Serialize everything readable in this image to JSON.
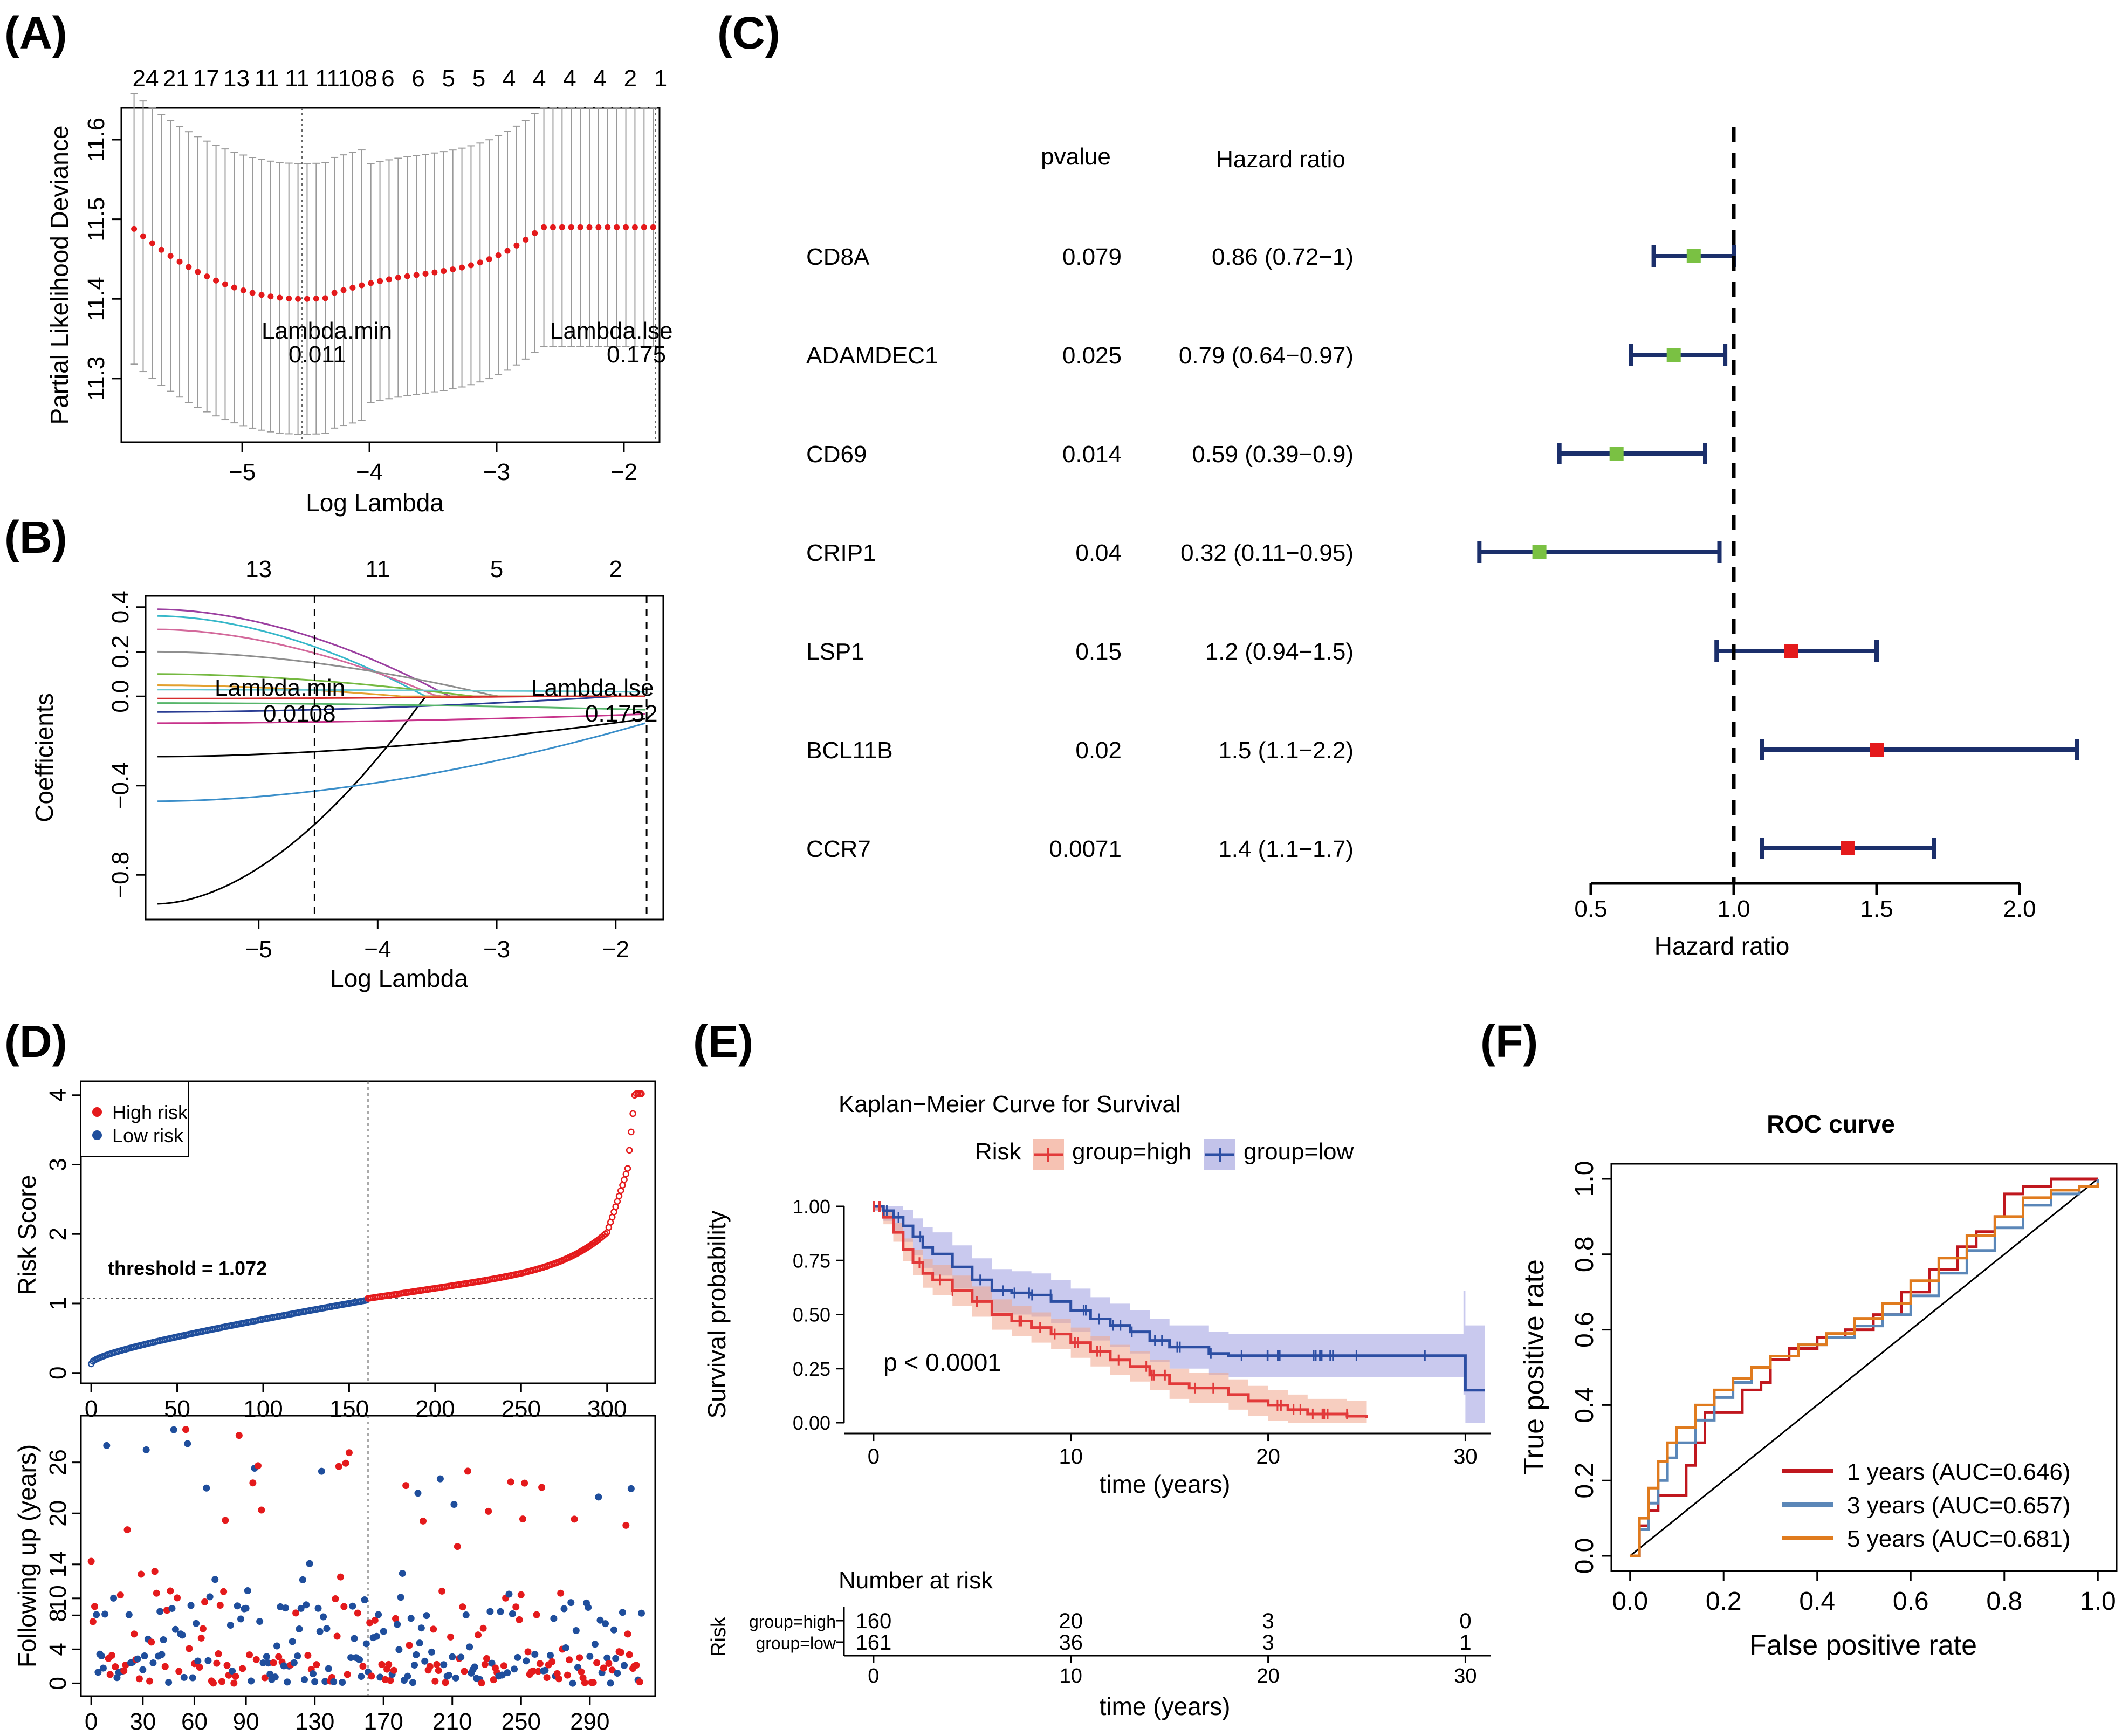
{
  "panel_labels": [
    "(A)",
    "(B)",
    "(C)",
    "(D)",
    "(E)",
    "(F)"
  ],
  "colors": {
    "red": "#e41a1c",
    "blue": "#1f4e9c",
    "green": "#7ac143",
    "navy": "#1b2f6b",
    "grey": "#9a9a9a",
    "km_red": "#e23a3a",
    "km_blue": "#2c4ea3",
    "roc1": "#c0171e",
    "roc3": "#5b87b8",
    "roc5": "#e07b1e"
  },
  "chart_data": [
    {
      "panel": "A",
      "type": "scatter",
      "xlabel": "Log Lambda",
      "ylabel": "Partial Likelihood Deviance",
      "xlim": [
        -5.95,
        -1.72
      ],
      "ylim": [
        11.22,
        11.64
      ],
      "xticks": [
        -5,
        -4,
        -3,
        -2
      ],
      "yticks": [
        11.3,
        11.4,
        11.5,
        11.6
      ],
      "top_labels": [
        "24",
        "21",
        "17",
        "13",
        "11",
        "11",
        "11",
        "108",
        "6",
        "6",
        "5",
        "5",
        "4",
        "4",
        "4",
        "4",
        "2",
        "1"
      ],
      "lambda_min": {
        "label": "Lambda.min",
        "value": "0.011",
        "log": -4.53
      },
      "lambda_1se": {
        "label": "Lambda.lse",
        "value": "0.175",
        "log": -1.75
      }
    },
    {
      "panel": "B",
      "type": "line",
      "xlabel": "Log Lambda",
      "ylabel": "Coefficients",
      "xlim": [
        -5.95,
        -1.6
      ],
      "ylim": [
        -1.0,
        0.45
      ],
      "xticks": [
        -5,
        -4,
        -3,
        -2
      ],
      "yticks": [
        -0.8,
        -0.4,
        0.0,
        0.2,
        0.4
      ],
      "ytick_labels": [
        "-0.8",
        "-0.4",
        "0.0",
        "0.2",
        "0.4"
      ],
      "top_ticks": [
        -5,
        -4,
        -3,
        -2
      ],
      "top_labels": [
        "13",
        "11",
        "5",
        "2"
      ],
      "lambda_min": {
        "label": "Lambda.min",
        "value": "0.0108",
        "log": -4.53
      },
      "lambda_1se": {
        "label": "Lambda.lse",
        "value": "0.1752",
        "log": -1.74
      }
    },
    {
      "panel": "C",
      "type": "forest",
      "col_headers": {
        "pvalue": "pvalue",
        "hr": "Hazard ratio"
      },
      "xlabel": "Hazard ratio",
      "xticks": [
        0.5,
        1.0,
        1.5,
        2.0
      ],
      "xtick_labels": [
        "0.5",
        "1.0",
        "1.5",
        "2.0"
      ],
      "rows": [
        {
          "gene": "CD8A",
          "pvalue": "0.079",
          "hr_text": "0.86 (0.72−1)",
          "hr": 0.86,
          "lo": 0.72,
          "hi": 1.0
        },
        {
          "gene": "ADAMDEC1",
          "pvalue": "0.025",
          "hr_text": "0.79 (0.64−0.97)",
          "hr": 0.79,
          "lo": 0.64,
          "hi": 0.97
        },
        {
          "gene": "CD69",
          "pvalue": "0.014",
          "hr_text": "0.59 (0.39−0.9)",
          "hr": 0.59,
          "lo": 0.39,
          "hi": 0.9
        },
        {
          "gene": "CRIP1",
          "pvalue": "0.04",
          "hr_text": "0.32 (0.11−0.95)",
          "hr": 0.32,
          "lo": 0.11,
          "hi": 0.95
        },
        {
          "gene": "LSP1",
          "pvalue": "0.15",
          "hr_text": "1.2 (0.94−1.5)",
          "hr": 1.2,
          "lo": 0.94,
          "hi": 1.5
        },
        {
          "gene": "BCL11B",
          "pvalue": "0.02",
          "hr_text": "1.5 (1.1−2.2)",
          "hr": 1.5,
          "lo": 1.1,
          "hi": 2.2
        },
        {
          "gene": "CCR7",
          "pvalue": "0.0071",
          "hr_text": "1.4 (1.1−1.7)",
          "hr": 1.4,
          "lo": 1.1,
          "hi": 1.7
        }
      ]
    },
    {
      "panel": "D-top",
      "type": "scatter",
      "ylabel": "Risk Score",
      "xlim": [
        -6,
        328
      ],
      "ylim": [
        -0.15,
        4.2
      ],
      "xticks": [
        0,
        50,
        100,
        150,
        200,
        250,
        300
      ],
      "yticks": [
        0,
        1,
        2,
        3,
        4
      ],
      "threshold": 1.072,
      "threshold_label": "threshold = 1.072",
      "cutoff_index": 161,
      "n": 321,
      "legend": [
        "High risk",
        "Low risk"
      ]
    },
    {
      "panel": "D-bottom",
      "type": "scatter",
      "ylabel": "Following up (years)",
      "xlim": [
        -6,
        328
      ],
      "ylim": [
        -1.5,
        31.5
      ],
      "xticks": [
        0,
        30,
        60,
        90,
        130,
        170,
        210,
        250,
        290
      ],
      "xtick_labels": [
        "0",
        "30",
        "60",
        "90",
        "130",
        "170",
        "210",
        "250",
        "290"
      ],
      "yticks": [
        0,
        4,
        8,
        10,
        14,
        20,
        26
      ],
      "ytick_labels": [
        "0",
        "4",
        "8",
        "10",
        "14",
        "20",
        "26"
      ],
      "cutoff_index": 161
    },
    {
      "panel": "E",
      "type": "line",
      "title": "Kaplan−Meier Curve for Survival",
      "legend_title": "Risk",
      "legend": [
        "group=high",
        "group=low"
      ],
      "xlabel": "time (years)",
      "ylabel": "Survival probability",
      "xlim": [
        -1.5,
        31.3
      ],
      "ylim": [
        -0.05,
        1.05
      ],
      "xticks": [
        0,
        10,
        20,
        30
      ],
      "yticks": [
        0.0,
        0.25,
        0.5,
        0.75,
        1.0
      ],
      "ytick_labels": [
        "0.00",
        "0.25",
        "0.50",
        "0.75",
        "1.00"
      ],
      "pvalue": "p < 0.0001",
      "series": [
        {
          "name": "group=high",
          "x": [
            0,
            0.5,
            1,
            1.5,
            2,
            2.5,
            3,
            4,
            5,
            6,
            7,
            8,
            9,
            10,
            11,
            12,
            13,
            14,
            15,
            16,
            17,
            18,
            19,
            20,
            21,
            22,
            23,
            24,
            25
          ],
          "y": [
            1.0,
            0.95,
            0.88,
            0.8,
            0.74,
            0.69,
            0.66,
            0.61,
            0.56,
            0.5,
            0.47,
            0.44,
            0.41,
            0.37,
            0.33,
            0.29,
            0.26,
            0.22,
            0.18,
            0.16,
            0.16,
            0.13,
            0.1,
            0.08,
            0.06,
            0.04,
            0.04,
            0.03,
            0.02
          ]
        },
        {
          "name": "group=low",
          "x": [
            0,
            0.5,
            1,
            1.5,
            2,
            2.5,
            3,
            4,
            5,
            6,
            7,
            8,
            9,
            10,
            11,
            12,
            13,
            14,
            15,
            16,
            17,
            18,
            20,
            25,
            29.9,
            30,
            31
          ],
          "y": [
            1.0,
            0.98,
            0.95,
            0.91,
            0.86,
            0.81,
            0.78,
            0.72,
            0.66,
            0.61,
            0.6,
            0.59,
            0.56,
            0.52,
            0.48,
            0.45,
            0.42,
            0.38,
            0.35,
            0.35,
            0.32,
            0.31,
            0.31,
            0.31,
            0.31,
            0.15,
            0.15
          ]
        }
      ],
      "risk_table": {
        "title": "Number at risk",
        "axis_label": "Risk",
        "xlabel": "time (years)",
        "times": [
          0,
          10,
          20,
          30
        ],
        "rows": [
          {
            "name": "group=high",
            "counts": [
              "160",
              "20",
              "3",
              "0"
            ]
          },
          {
            "name": "group=low",
            "counts": [
              "161",
              "36",
              "3",
              "1"
            ]
          }
        ]
      }
    },
    {
      "panel": "F",
      "type": "line",
      "title": "ROC curve",
      "xlabel": "False positive rate",
      "ylabel": "True positive rate",
      "xlim": [
        -0.04,
        1.04
      ],
      "ylim": [
        -0.04,
        1.04
      ],
      "xticks": [
        0.0,
        0.2,
        0.4,
        0.6,
        0.8,
        1.0
      ],
      "yticks": [
        0.0,
        0.2,
        0.4,
        0.6,
        0.8,
        1.0
      ],
      "tick_labels": [
        "0.0",
        "0.2",
        "0.4",
        "0.6",
        "0.8",
        "1.0"
      ],
      "series": [
        {
          "name": "1 years (AUC=0.646)",
          "x": [
            0,
            0.02,
            0.04,
            0.06,
            0.1,
            0.12,
            0.14,
            0.16,
            0.2,
            0.24,
            0.28,
            0.3,
            0.34,
            0.4,
            0.46,
            0.52,
            0.58,
            0.64,
            0.7,
            0.74,
            0.78,
            0.8,
            0.84,
            0.9,
            1.0
          ],
          "y": [
            0,
            0.08,
            0.12,
            0.16,
            0.16,
            0.24,
            0.3,
            0.38,
            0.38,
            0.44,
            0.46,
            0.52,
            0.55,
            0.58,
            0.6,
            0.64,
            0.7,
            0.76,
            0.82,
            0.86,
            0.9,
            0.96,
            0.98,
            1.0,
            1.0
          ]
        },
        {
          "name": "3 years (AUC=0.657)",
          "x": [
            0,
            0.02,
            0.04,
            0.06,
            0.08,
            0.1,
            0.14,
            0.18,
            0.22,
            0.26,
            0.3,
            0.36,
            0.42,
            0.48,
            0.54,
            0.6,
            0.66,
            0.72,
            0.78,
            0.84,
            0.9,
            0.96,
            1.0
          ],
          "y": [
            0,
            0.07,
            0.14,
            0.2,
            0.26,
            0.3,
            0.36,
            0.42,
            0.46,
            0.5,
            0.53,
            0.56,
            0.58,
            0.61,
            0.64,
            0.69,
            0.75,
            0.81,
            0.87,
            0.93,
            0.96,
            0.98,
            1.0
          ]
        },
        {
          "name": "5 years (AUC=0.681)",
          "x": [
            0,
            0.02,
            0.04,
            0.06,
            0.08,
            0.1,
            0.14,
            0.18,
            0.22,
            0.26,
            0.3,
            0.36,
            0.42,
            0.48,
            0.54,
            0.6,
            0.66,
            0.72,
            0.78,
            0.84,
            0.9,
            0.96,
            1.0
          ],
          "y": [
            0,
            0.1,
            0.18,
            0.25,
            0.3,
            0.34,
            0.4,
            0.44,
            0.47,
            0.5,
            0.53,
            0.56,
            0.59,
            0.63,
            0.67,
            0.73,
            0.79,
            0.85,
            0.9,
            0.95,
            0.97,
            0.98,
            0.99
          ]
        }
      ]
    }
  ]
}
